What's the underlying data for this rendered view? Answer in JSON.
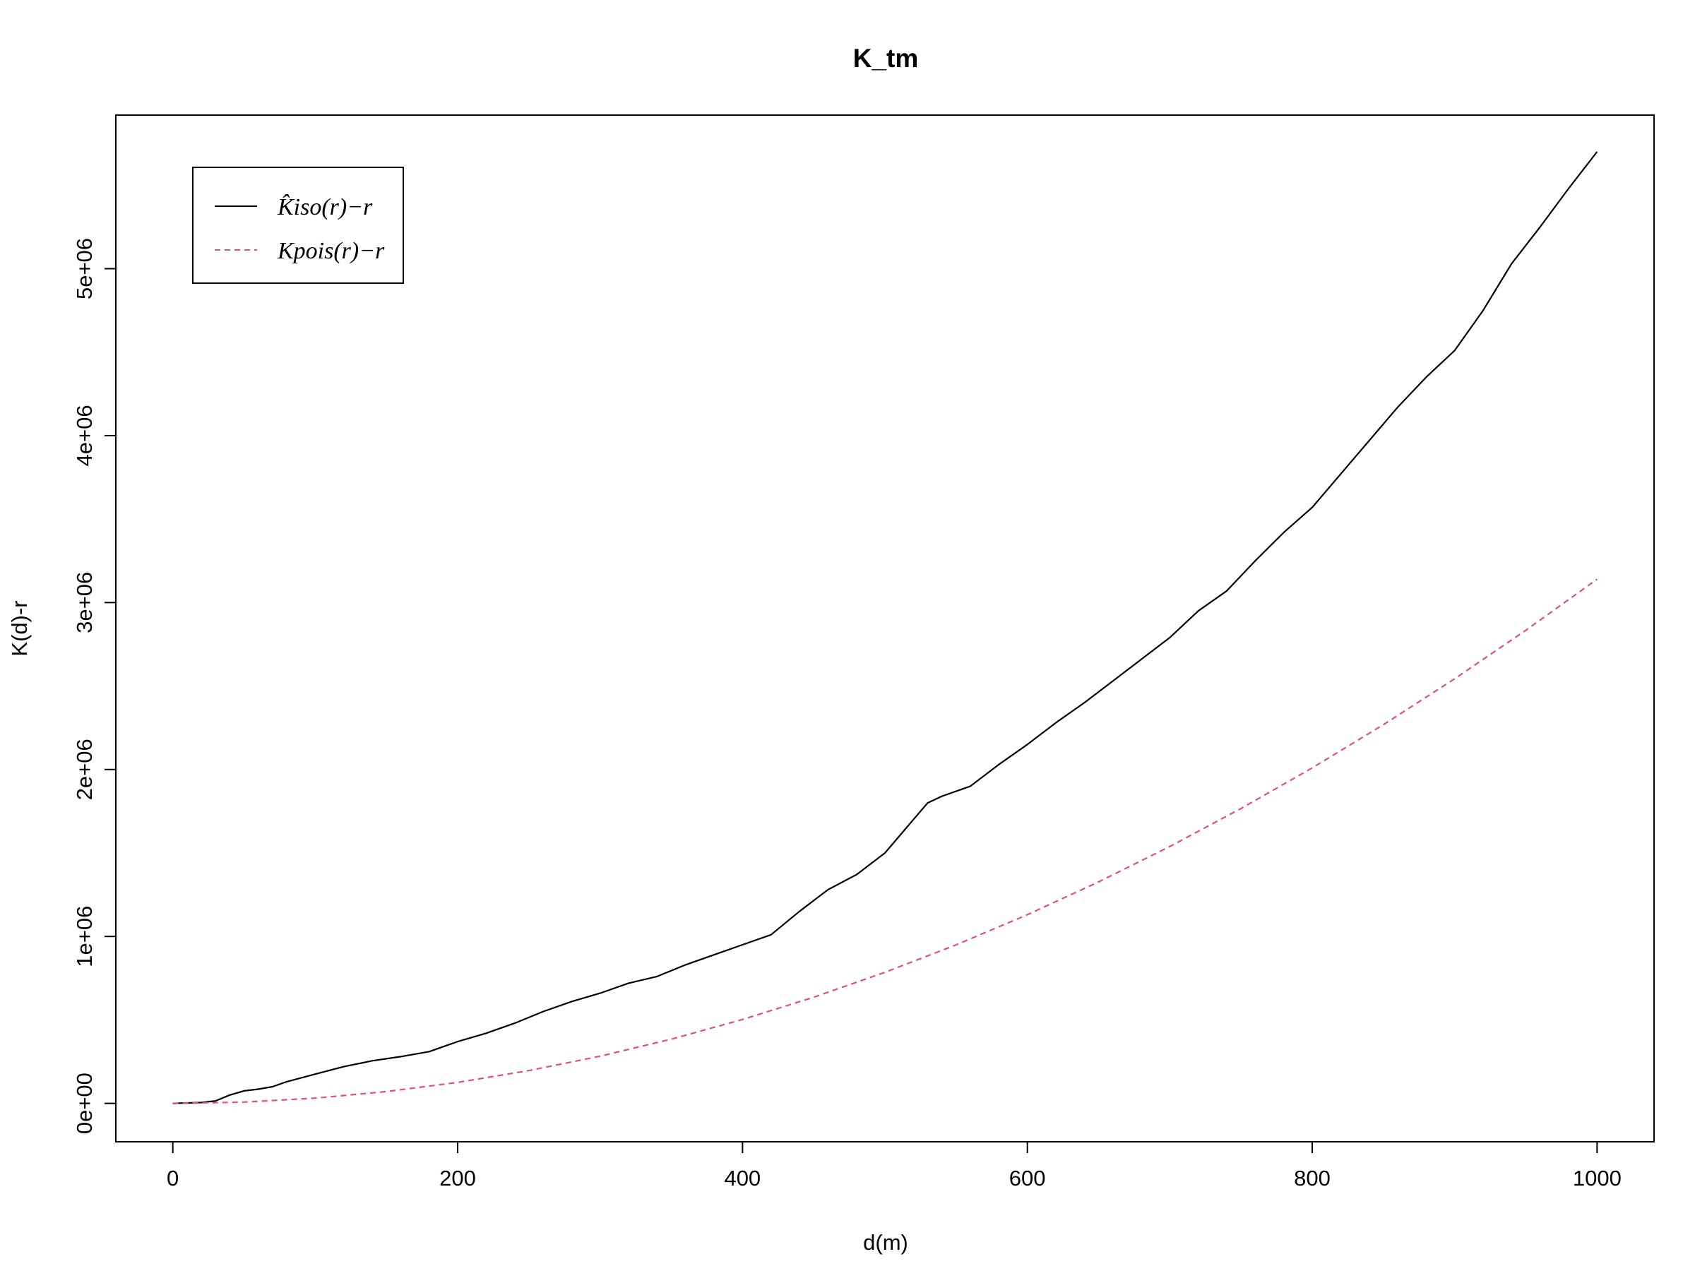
{
  "chart_data": {
    "type": "line",
    "title": "K_tm",
    "xlabel": "d(m)",
    "ylabel": "K(d)-r",
    "xlim": [
      -40,
      1040
    ],
    "ylim": [
      -230000,
      5920000
    ],
    "x_ticks": [
      0,
      200,
      400,
      600,
      800,
      1000
    ],
    "x_tick_labels": [
      "0",
      "200",
      "400",
      "600",
      "800",
      "1000"
    ],
    "y_ticks": [
      0,
      1000000,
      2000000,
      3000000,
      4000000,
      5000000
    ],
    "y_tick_labels": [
      "0e+00",
      "1e+06",
      "2e+06",
      "3e+06",
      "4e+06",
      "5e+06"
    ],
    "grid": false,
    "legend_position": "top-left",
    "series": [
      {
        "name": "K̂iso(r)−r",
        "color": "#000000",
        "dash": "solid",
        "x": [
          0,
          20,
          30,
          40,
          50,
          60,
          70,
          80,
          100,
          120,
          140,
          160,
          180,
          200,
          220,
          240,
          260,
          280,
          300,
          320,
          340,
          360,
          380,
          400,
          420,
          440,
          460,
          480,
          500,
          520,
          530,
          540,
          560,
          580,
          600,
          620,
          640,
          660,
          680,
          700,
          720,
          740,
          760,
          780,
          800,
          820,
          840,
          860,
          880,
          900,
          920,
          940,
          960,
          980,
          1000
        ],
        "y": [
          0,
          5000,
          15000,
          50000,
          75000,
          85000,
          100000,
          130000,
          175000,
          220000,
          255000,
          280000,
          310000,
          370000,
          420000,
          480000,
          550000,
          610000,
          660000,
          720000,
          760000,
          830000,
          890000,
          950000,
          1010000,
          1150000,
          1280000,
          1370000,
          1500000,
          1700000,
          1800000,
          1840000,
          1900000,
          2030000,
          2150000,
          2280000,
          2400000,
          2530000,
          2660000,
          2790000,
          2950000,
          3070000,
          3250000,
          3420000,
          3570000,
          3770000,
          3970000,
          4170000,
          4350000,
          4510000,
          4750000,
          5030000,
          5250000,
          5480000,
          5700000
        ]
      },
      {
        "name": "Kpois(r)−r",
        "color": "#DF536B",
        "dash": "dashed",
        "x": [
          0,
          50,
          100,
          150,
          200,
          250,
          300,
          350,
          400,
          450,
          500,
          550,
          600,
          650,
          700,
          750,
          800,
          850,
          900,
          950,
          1000
        ],
        "y": [
          0,
          7850,
          31400,
          70650,
          125600,
          196250,
          282600,
          384650,
          502400,
          635850,
          785000,
          949850,
          1130400,
          1326650,
          1538600,
          1766250,
          2009600,
          2268650,
          2543400,
          2833850,
          3140000
        ]
      }
    ]
  }
}
